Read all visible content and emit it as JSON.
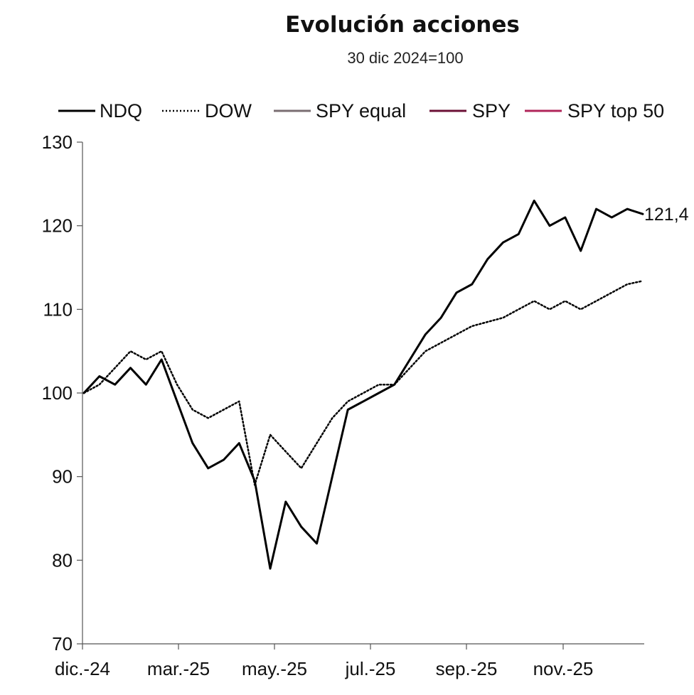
{
  "chart_data": {
    "type": "line",
    "title": "Evolución acciones",
    "subtitle": "30 dic 2024=100",
    "xlabel": "",
    "ylabel": "",
    "ylim": [
      70,
      130
    ],
    "yticks": [
      70,
      80,
      90,
      100,
      110,
      120,
      130
    ],
    "xticks": [
      "dic.-24",
      "mar.-25",
      "may.-25",
      "jul.-25",
      "sep.-25",
      "nov.-25"
    ],
    "grid": false,
    "legend_position": "top",
    "x": [
      "dic.-24",
      "ene.-25",
      "ene.-25",
      "ene.-25",
      "feb.-25",
      "feb.-25",
      "mar.-25",
      "mar.-25",
      "mar.-25",
      "abr.-25",
      "abr.-25",
      "abr.-25",
      "abr.-25",
      "abr.-25",
      "may.-25",
      "may.-25",
      "may.-25",
      "jun.-25",
      "jun.-25",
      "jul.-25",
      "jul.-25",
      "jul.-25",
      "ago.-25",
      "ago.-25",
      "sep.-25",
      "sep.-25",
      "sep.-25",
      "oct.-25",
      "oct.-25",
      "oct.-25",
      "oct.-25",
      "nov.-25",
      "nov.-25",
      "nov.-25",
      "dic.-25",
      "dic.-25",
      "dic.-25"
    ],
    "series": [
      {
        "name": "NDQ",
        "color": "#000000",
        "dash": "solid",
        "end_label": "121,4",
        "end_label_bold": false,
        "values": [
          100,
          102,
          101,
          103,
          101,
          104,
          99,
          94,
          91,
          92,
          94,
          89.5,
          79,
          87,
          84,
          82,
          90,
          98,
          99,
          100,
          101,
          104,
          107,
          109,
          112,
          113,
          116,
          118,
          119,
          123,
          120,
          121,
          117,
          122,
          121,
          122,
          121.4
        ]
      },
      {
        "name": "DOW",
        "color": "#000000",
        "dash": "dotted",
        "end_label": "",
        "end_label_bold": false,
        "values": [
          100,
          101,
          103,
          105,
          104,
          105,
          101,
          98,
          97,
          98,
          99,
          89,
          95,
          93,
          91,
          94,
          97,
          99,
          100,
          101,
          101,
          103,
          105,
          106,
          107,
          108,
          108.5,
          109,
          110,
          111,
          110,
          111,
          110,
          111,
          112,
          113,
          113.4
        ]
      }
    ]
  }
}
